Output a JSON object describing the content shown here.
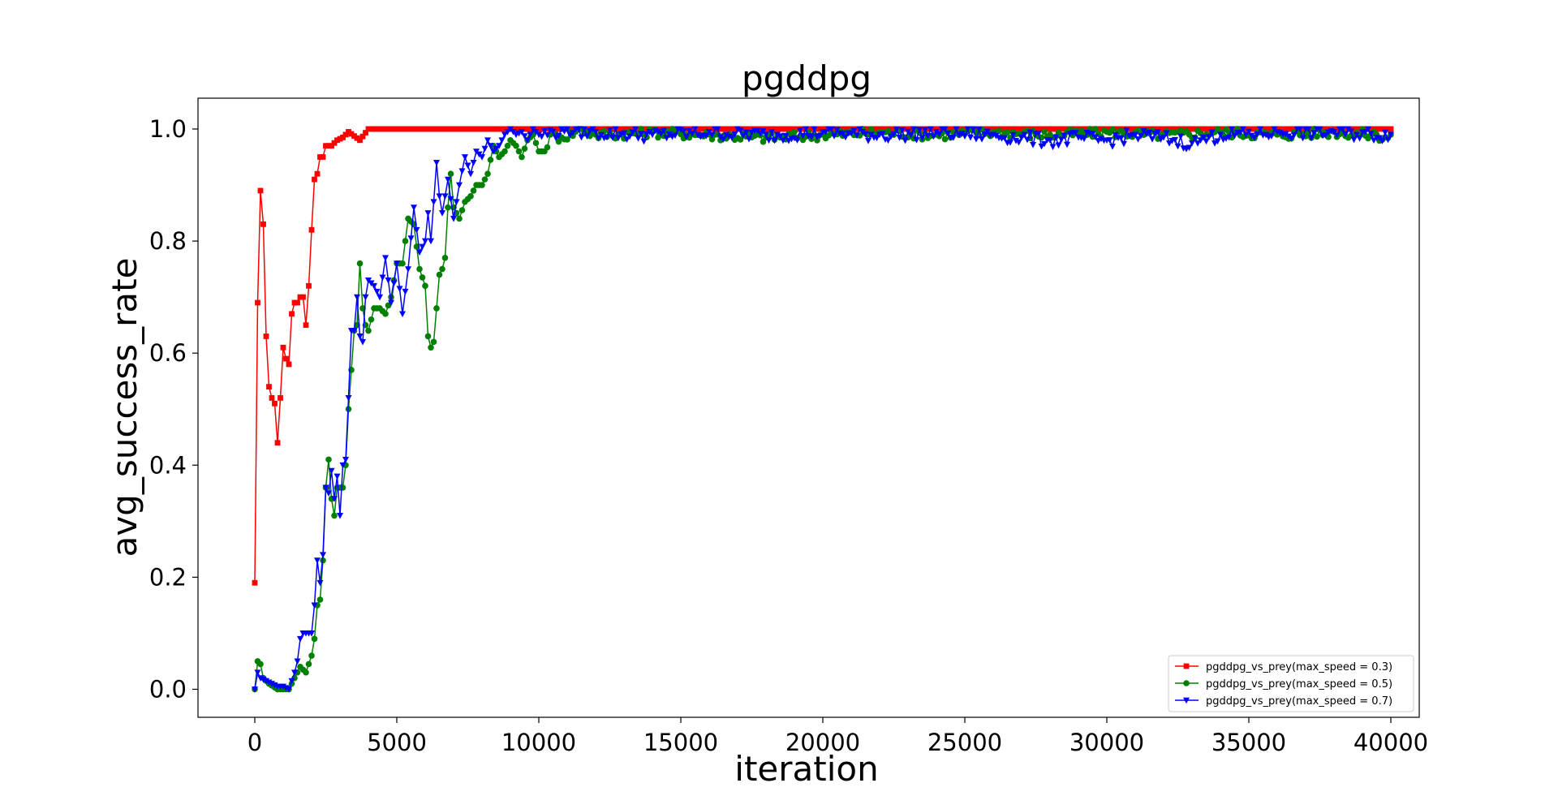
{
  "chart_data": {
    "type": "line",
    "title": "pgddpg",
    "xlabel": "iteration",
    "ylabel": "avg_success_rate",
    "xlim": [
      -2000,
      41000
    ],
    "ylim": [
      -0.05,
      1.055
    ],
    "xticks": [
      0,
      5000,
      10000,
      15000,
      20000,
      25000,
      30000,
      35000,
      40000
    ],
    "xtick_labels": [
      "0",
      "5000",
      "10000",
      "15000",
      "20000",
      "25000",
      "30000",
      "35000",
      "40000"
    ],
    "yticks": [
      0.0,
      0.2,
      0.4,
      0.6,
      0.8,
      1.0
    ],
    "ytick_labels": [
      "0.0",
      "0.2",
      "0.4",
      "0.6",
      "0.8",
      "1.0"
    ],
    "grid": false,
    "legend_position": "lower-right",
    "x_step": 100,
    "series": [
      {
        "name": "pgddpg_vs_prey(max_speed = 0.3)",
        "color": "#ff0000",
        "marker": "square",
        "key_points": [
          [
            0,
            0.19
          ],
          [
            100,
            0.69
          ],
          [
            200,
            0.89
          ],
          [
            300,
            0.83
          ],
          [
            400,
            0.63
          ],
          [
            500,
            0.54
          ],
          [
            600,
            0.52
          ],
          [
            700,
            0.51
          ],
          [
            800,
            0.44
          ],
          [
            900,
            0.52
          ],
          [
            1000,
            0.61
          ],
          [
            1100,
            0.59
          ],
          [
            1200,
            0.58
          ],
          [
            1300,
            0.67
          ],
          [
            1400,
            0.69
          ],
          [
            1500,
            0.69
          ],
          [
            1600,
            0.7
          ],
          [
            1700,
            0.7
          ],
          [
            1800,
            0.65
          ],
          [
            1900,
            0.72
          ],
          [
            2000,
            0.82
          ],
          [
            2100,
            0.91
          ],
          [
            2200,
            0.92
          ],
          [
            2300,
            0.95
          ],
          [
            2400,
            0.95
          ],
          [
            2500,
            0.97
          ],
          [
            2700,
            0.97
          ],
          [
            2900,
            0.98
          ],
          [
            3100,
            0.985
          ],
          [
            3300,
            0.995
          ],
          [
            3700,
            0.98
          ],
          [
            4000,
            1.0
          ],
          [
            40000,
            1.0
          ]
        ]
      },
      {
        "name": "pgddpg_vs_prey(max_speed = 0.5)",
        "color": "#008000",
        "marker": "circle",
        "key_points": [
          [
            0,
            0.0
          ],
          [
            100,
            0.05
          ],
          [
            200,
            0.045
          ],
          [
            300,
            0.02
          ],
          [
            500,
            0.01
          ],
          [
            800,
            0.0
          ],
          [
            1200,
            0.0
          ],
          [
            1400,
            0.02
          ],
          [
            1600,
            0.04
          ],
          [
            1800,
            0.03
          ],
          [
            2000,
            0.06
          ],
          [
            2100,
            0.09
          ],
          [
            2200,
            0.15
          ],
          [
            2300,
            0.16
          ],
          [
            2400,
            0.23
          ],
          [
            2500,
            0.36
          ],
          [
            2600,
            0.41
          ],
          [
            2700,
            0.34
          ],
          [
            2800,
            0.31
          ],
          [
            2900,
            0.36
          ],
          [
            3000,
            0.36
          ],
          [
            3100,
            0.36
          ],
          [
            3200,
            0.4
          ],
          [
            3300,
            0.5
          ],
          [
            3400,
            0.57
          ],
          [
            3500,
            0.64
          ],
          [
            3600,
            0.65
          ],
          [
            3700,
            0.76
          ],
          [
            3800,
            0.68
          ],
          [
            3900,
            0.65
          ],
          [
            4000,
            0.64
          ],
          [
            4200,
            0.68
          ],
          [
            4400,
            0.68
          ],
          [
            4600,
            0.67
          ],
          [
            4800,
            0.7
          ],
          [
            5000,
            0.76
          ],
          [
            5200,
            0.76
          ],
          [
            5400,
            0.84
          ],
          [
            5600,
            0.83
          ],
          [
            5800,
            0.75
          ],
          [
            6000,
            0.72
          ],
          [
            6100,
            0.63
          ],
          [
            6200,
            0.61
          ],
          [
            6300,
            0.62
          ],
          [
            6400,
            0.68
          ],
          [
            6500,
            0.74
          ],
          [
            6600,
            0.75
          ],
          [
            6700,
            0.77
          ],
          [
            6800,
            0.86
          ],
          [
            6900,
            0.92
          ],
          [
            7000,
            0.86
          ],
          [
            7200,
            0.84
          ],
          [
            7400,
            0.87
          ],
          [
            7600,
            0.88
          ],
          [
            7800,
            0.9
          ],
          [
            8000,
            0.9
          ],
          [
            8200,
            0.92
          ],
          [
            8400,
            0.97
          ],
          [
            8600,
            0.95
          ],
          [
            8800,
            0.96
          ],
          [
            9000,
            0.98
          ],
          [
            9200,
            0.97
          ],
          [
            9400,
            0.95
          ],
          [
            9600,
            0.98
          ],
          [
            9800,
            0.99
          ],
          [
            10000,
            0.96
          ],
          [
            10200,
            0.96
          ],
          [
            10400,
            0.99
          ],
          [
            10800,
            0.985
          ],
          [
            11500,
            1.0
          ],
          [
            12000,
            0.99
          ],
          [
            14000,
            0.995
          ],
          [
            16000,
            0.99
          ],
          [
            18000,
            0.985
          ],
          [
            20000,
            0.99
          ],
          [
            22000,
            0.995
          ],
          [
            24000,
            0.99
          ],
          [
            26000,
            0.995
          ],
          [
            28000,
            0.99
          ],
          [
            30000,
            0.995
          ],
          [
            32000,
            0.99
          ],
          [
            34000,
            0.995
          ],
          [
            36000,
            0.99
          ],
          [
            38000,
            0.995
          ],
          [
            39500,
            0.99
          ],
          [
            39800,
            0.985
          ],
          [
            40000,
            0.99
          ]
        ]
      },
      {
        "name": "pgddpg_vs_prey(max_speed = 0.7)",
        "color": "#0000ff",
        "marker": "triangle-down",
        "key_points": [
          [
            0,
            0.0
          ],
          [
            100,
            0.03
          ],
          [
            200,
            0.02
          ],
          [
            400,
            0.015
          ],
          [
            600,
            0.01
          ],
          [
            800,
            0.005
          ],
          [
            1000,
            0.005
          ],
          [
            1200,
            0.0
          ],
          [
            1400,
            0.03
          ],
          [
            1500,
            0.05
          ],
          [
            1600,
            0.09
          ],
          [
            1700,
            0.1
          ],
          [
            1800,
            0.1
          ],
          [
            1900,
            0.1
          ],
          [
            2000,
            0.1
          ],
          [
            2100,
            0.15
          ],
          [
            2200,
            0.23
          ],
          [
            2300,
            0.19
          ],
          [
            2400,
            0.24
          ],
          [
            2500,
            0.36
          ],
          [
            2600,
            0.35
          ],
          [
            2700,
            0.39
          ],
          [
            2800,
            0.34
          ],
          [
            2900,
            0.38
          ],
          [
            3000,
            0.31
          ],
          [
            3100,
            0.4
          ],
          [
            3200,
            0.41
          ],
          [
            3300,
            0.52
          ],
          [
            3400,
            0.64
          ],
          [
            3500,
            0.64
          ],
          [
            3600,
            0.7
          ],
          [
            3700,
            0.63
          ],
          [
            3800,
            0.62
          ],
          [
            3900,
            0.7
          ],
          [
            4000,
            0.73
          ],
          [
            4200,
            0.72
          ],
          [
            4400,
            0.7
          ],
          [
            4600,
            0.77
          ],
          [
            4800,
            0.69
          ],
          [
            5000,
            0.76
          ],
          [
            5200,
            0.67
          ],
          [
            5400,
            0.75
          ],
          [
            5600,
            0.86
          ],
          [
            5800,
            0.78
          ],
          [
            6000,
            0.8
          ],
          [
            6100,
            0.85
          ],
          [
            6200,
            0.8
          ],
          [
            6400,
            0.94
          ],
          [
            6500,
            0.88
          ],
          [
            6600,
            0.85
          ],
          [
            6800,
            0.91
          ],
          [
            7000,
            0.84
          ],
          [
            7200,
            0.9
          ],
          [
            7400,
            0.95
          ],
          [
            7600,
            0.92
          ],
          [
            7800,
            0.96
          ],
          [
            8000,
            0.95
          ],
          [
            8200,
            0.98
          ],
          [
            8400,
            0.96
          ],
          [
            8600,
            0.97
          ],
          [
            8800,
            0.99
          ],
          [
            9000,
            1.0
          ],
          [
            9200,
            0.99
          ],
          [
            9400,
            0.995
          ],
          [
            9600,
            0.98
          ],
          [
            9800,
            1.0
          ],
          [
            10000,
            0.99
          ],
          [
            11000,
            1.0
          ],
          [
            12000,
            0.995
          ],
          [
            14000,
            0.99
          ],
          [
            16000,
            0.995
          ],
          [
            18000,
            0.99
          ],
          [
            20000,
            0.995
          ],
          [
            22000,
            0.99
          ],
          [
            24000,
            0.995
          ],
          [
            26000,
            0.99
          ],
          [
            27000,
            0.985
          ],
          [
            28000,
            0.98
          ],
          [
            29000,
            0.985
          ],
          [
            30000,
            0.98
          ],
          [
            31000,
            0.99
          ],
          [
            32000,
            0.985
          ],
          [
            33000,
            0.975
          ],
          [
            33300,
            0.98
          ],
          [
            34000,
            0.99
          ],
          [
            36000,
            0.995
          ],
          [
            38000,
            0.995
          ],
          [
            40000,
            0.99
          ]
        ]
      }
    ]
  }
}
